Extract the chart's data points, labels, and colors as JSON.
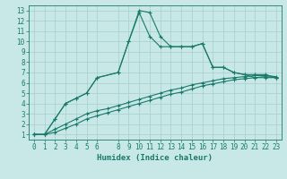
{
  "line1_x": [
    0,
    1,
    2,
    3,
    4,
    5,
    6,
    8,
    9,
    10,
    11,
    12,
    13,
    14,
    15,
    16,
    17,
    18,
    19,
    20,
    21,
    22,
    23
  ],
  "line1_y": [
    1,
    1,
    2.5,
    4,
    4.5,
    5,
    6.5,
    7,
    10,
    13,
    12.8,
    10.5,
    9.5,
    9.5,
    9.5,
    9.8,
    7.5,
    7.5,
    7,
    6.8,
    6.5,
    6.5,
    6.5
  ],
  "line2_x": [
    0,
    1,
    2,
    3,
    4,
    5,
    6,
    8,
    9,
    10,
    11,
    12,
    13,
    14,
    15,
    16,
    17,
    18,
    19,
    20,
    21,
    22,
    23
  ],
  "line2_y": [
    1,
    1,
    2.5,
    4,
    4.5,
    5,
    6.5,
    7,
    10,
    12.8,
    10.5,
    9.5,
    9.5,
    9.5,
    9.5,
    9.8,
    7.5,
    7.5,
    7,
    6.8,
    6.8,
    6.8,
    6.5
  ],
  "line3_x": [
    0,
    1,
    2,
    3,
    4,
    5,
    6,
    7,
    8,
    9,
    10,
    11,
    12,
    13,
    14,
    15,
    16,
    17,
    18,
    19,
    20,
    21,
    22,
    23
  ],
  "line3_y": [
    1,
    1,
    1.5,
    2,
    2.5,
    3.0,
    3.3,
    3.5,
    3.8,
    4.1,
    4.4,
    4.7,
    5.0,
    5.3,
    5.5,
    5.8,
    6.0,
    6.2,
    6.4,
    6.5,
    6.6,
    6.7,
    6.7,
    6.6
  ],
  "line4_x": [
    0,
    1,
    2,
    3,
    4,
    5,
    6,
    7,
    8,
    9,
    10,
    11,
    12,
    13,
    14,
    15,
    16,
    17,
    18,
    19,
    20,
    21,
    22,
    23
  ],
  "line4_y": [
    1,
    1,
    1.2,
    1.6,
    2.0,
    2.5,
    2.8,
    3.1,
    3.4,
    3.7,
    4.0,
    4.3,
    4.6,
    4.9,
    5.1,
    5.4,
    5.7,
    5.9,
    6.1,
    6.3,
    6.4,
    6.5,
    6.6,
    6.5
  ],
  "line_color": "#1a7a6a",
  "bg_color": "#c8e8e8",
  "grid_color": "#a8cece",
  "xlabel": "Humidex (Indice chaleur)",
  "xlim": [
    -0.5,
    23.5
  ],
  "ylim": [
    0.5,
    13.5
  ],
  "xticks": [
    0,
    1,
    2,
    3,
    4,
    5,
    6,
    8,
    9,
    10,
    11,
    12,
    13,
    14,
    15,
    16,
    17,
    18,
    19,
    20,
    21,
    22,
    23
  ],
  "yticks": [
    1,
    2,
    3,
    4,
    5,
    6,
    7,
    8,
    9,
    10,
    11,
    12,
    13
  ],
  "tick_fontsize": 5.5,
  "xlabel_fontsize": 6.5
}
